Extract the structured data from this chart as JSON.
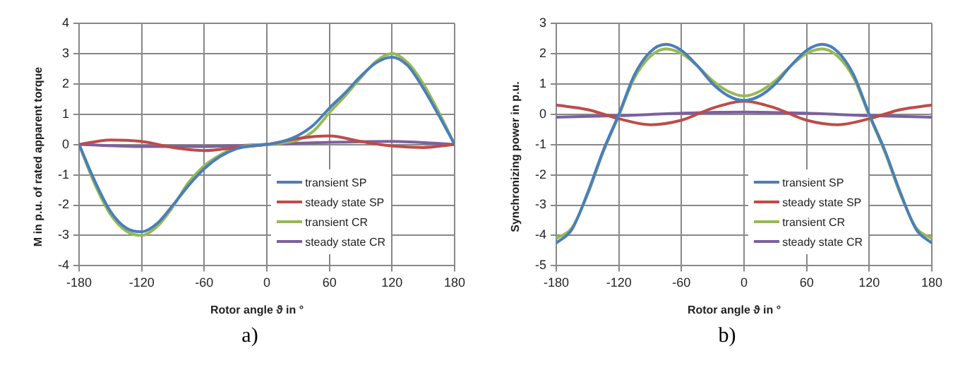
{
  "chart_data": [
    {
      "type": "line",
      "xlabel": "Rotor angle ϑ in °",
      "ylabel": "M in p.u. of rated apparent torque",
      "annotations": [
        "a)"
      ],
      "xlim": [
        -180,
        180
      ],
      "ylim": [
        -4,
        4
      ],
      "xticks": [
        -180,
        -120,
        -60,
        0,
        60,
        120,
        180
      ],
      "yticks": [
        -4,
        -3,
        -2,
        -1,
        0,
        1,
        2,
        3,
        4
      ],
      "grid": true,
      "legend": "bottom right",
      "marker": "none",
      "line_style": "solid",
      "series": [
        {
          "name": "transient SP",
          "color": "#4a7ebb",
          "x": [
            -180,
            -165,
            -150,
            -135,
            -120,
            -105,
            -90,
            -75,
            -60,
            -45,
            -30,
            -15,
            0,
            15,
            30,
            45,
            60,
            75,
            90,
            105,
            120,
            135,
            150,
            165,
            180
          ],
          "values": [
            0,
            -1.2,
            -2.2,
            -2.75,
            -2.88,
            -2.6,
            -2.0,
            -1.35,
            -0.8,
            -0.4,
            -0.15,
            -0.05,
            0,
            0.1,
            0.3,
            0.65,
            1.2,
            1.7,
            2.25,
            2.7,
            2.88,
            2.6,
            1.85,
            0.95,
            0
          ]
        },
        {
          "name": "steady state SP",
          "color": "#be4b48",
          "x": [
            -180,
            -150,
            -120,
            -90,
            -60,
            -30,
            0,
            30,
            60,
            90,
            120,
            150,
            180
          ],
          "values": [
            0,
            0.15,
            0.1,
            -0.1,
            -0.2,
            -0.1,
            0,
            0.2,
            0.28,
            0.1,
            -0.05,
            -0.1,
            0
          ]
        },
        {
          "name": "transient CR",
          "color": "#98b954",
          "x": [
            -180,
            -165,
            -150,
            -135,
            -120,
            -105,
            -90,
            -75,
            -60,
            -45,
            -30,
            -15,
            0,
            15,
            30,
            45,
            60,
            75,
            90,
            105,
            120,
            135,
            150,
            165,
            180
          ],
          "values": [
            0,
            -1.3,
            -2.3,
            -2.85,
            -3.0,
            -2.7,
            -2.05,
            -1.25,
            -0.7,
            -0.35,
            -0.12,
            -0.03,
            0,
            0.05,
            0.15,
            0.45,
            1.05,
            1.6,
            2.2,
            2.75,
            3.0,
            2.7,
            2.0,
            1.05,
            0
          ]
        },
        {
          "name": "steady state CR",
          "color": "#7d60a0",
          "x": [
            -180,
            -120,
            -60,
            0,
            60,
            120,
            180
          ],
          "values": [
            0,
            -0.07,
            -0.07,
            0,
            0.07,
            0.1,
            0
          ]
        }
      ]
    },
    {
      "type": "line",
      "xlabel": "Rotor angle ϑ in °",
      "ylabel": "Synchronizing power in p.u.",
      "annotations": [
        "b)"
      ],
      "xlim": [
        -180,
        180
      ],
      "ylim": [
        -5,
        3
      ],
      "xticks": [
        -180,
        -120,
        -60,
        0,
        60,
        120,
        180
      ],
      "yticks": [
        -5,
        -4,
        -3,
        -2,
        -1,
        0,
        1,
        2,
        3
      ],
      "grid": true,
      "legend": "bottom right",
      "marker": "none",
      "line_style": "solid",
      "series": [
        {
          "name": "transient SP",
          "color": "#4a7ebb",
          "x": [
            -180,
            -165,
            -150,
            -135,
            -120,
            -105,
            -90,
            -75,
            -60,
            -45,
            -30,
            -15,
            0,
            15,
            30,
            45,
            60,
            75,
            90,
            105,
            120,
            135,
            150,
            165,
            180
          ],
          "values": [
            -4.25,
            -3.8,
            -2.6,
            -1.2,
            0,
            1.3,
            2.05,
            2.3,
            2.1,
            1.6,
            1.0,
            0.6,
            0.45,
            0.6,
            1.0,
            1.6,
            2.1,
            2.3,
            2.05,
            1.3,
            0,
            -1.2,
            -2.6,
            -3.8,
            -4.25
          ]
        },
        {
          "name": "steady state SP",
          "color": "#be4b48",
          "x": [
            -180,
            -150,
            -120,
            -90,
            -60,
            -30,
            0,
            30,
            60,
            90,
            120,
            150,
            180
          ],
          "values": [
            0.3,
            0.15,
            -0.15,
            -0.35,
            -0.2,
            0.2,
            0.43,
            0.2,
            -0.2,
            -0.35,
            -0.15,
            0.15,
            0.3
          ]
        },
        {
          "name": "transient CR",
          "color": "#98b954",
          "x": [
            -180,
            -165,
            -150,
            -135,
            -120,
            -105,
            -90,
            -75,
            -60,
            -45,
            -30,
            -15,
            0,
            15,
            30,
            45,
            60,
            75,
            90,
            105,
            120,
            135,
            150,
            165,
            180
          ],
          "values": [
            -4.1,
            -3.75,
            -2.65,
            -1.25,
            -0.05,
            1.2,
            1.9,
            2.15,
            2.0,
            1.6,
            1.1,
            0.75,
            0.6,
            0.75,
            1.1,
            1.6,
            2.0,
            2.15,
            1.9,
            1.2,
            -0.05,
            -1.25,
            -2.65,
            -3.75,
            -4.1
          ]
        },
        {
          "name": "steady state CR",
          "color": "#7d60a0",
          "x": [
            -180,
            -120,
            -60,
            0,
            60,
            120,
            180
          ],
          "values": [
            -0.1,
            -0.05,
            0.03,
            0.07,
            0.03,
            -0.05,
            -0.1
          ]
        }
      ]
    }
  ]
}
